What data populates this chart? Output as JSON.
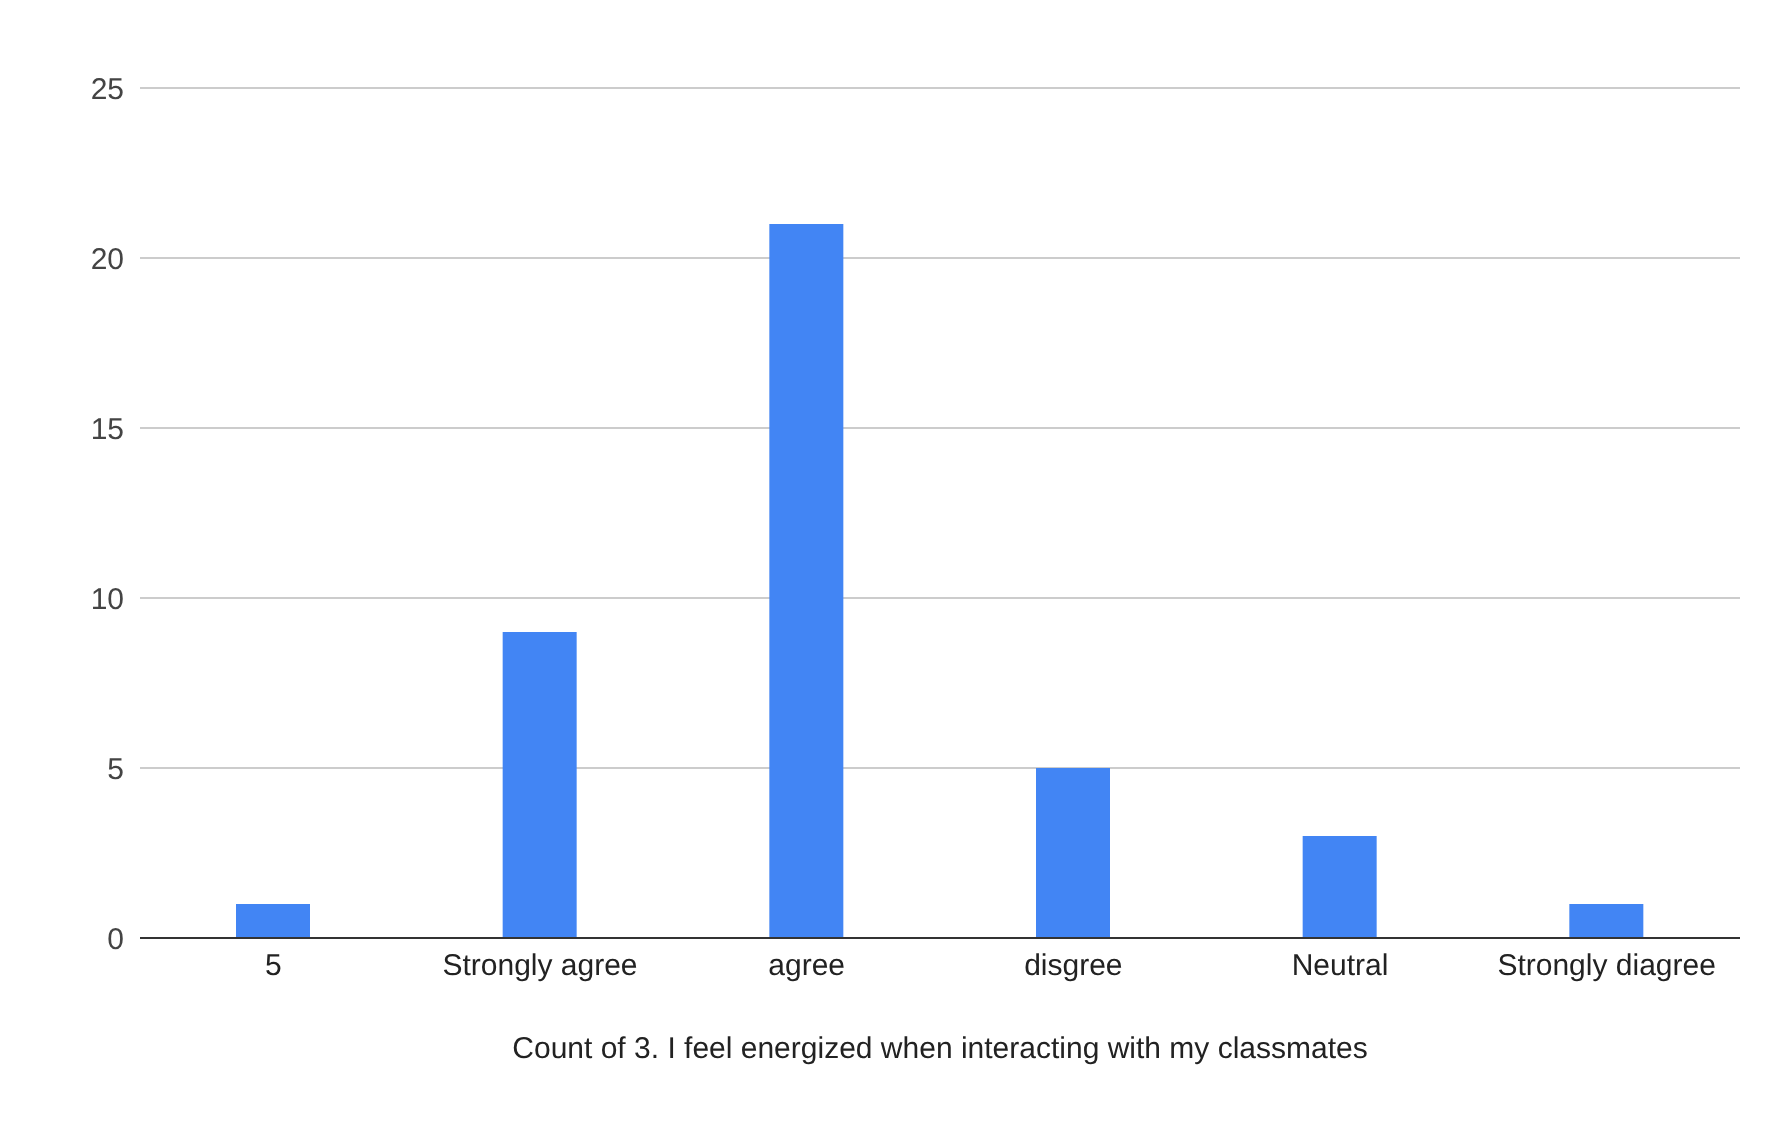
{
  "chart_data": {
    "type": "bar",
    "xlabel": "Count of 3. I feel energized when interacting with my classmates",
    "categories": [
      "5",
      "Strongly agree",
      "agree",
      "disgree",
      "Neutral",
      "Strongly diagree"
    ],
    "values": [
      1,
      9,
      21,
      5,
      3,
      1
    ],
    "color": "#4285f4",
    "ylim": [
      0,
      25
    ],
    "yticks": [
      0,
      5,
      10,
      15,
      20,
      25
    ],
    "grid": "y",
    "legend": false
  }
}
